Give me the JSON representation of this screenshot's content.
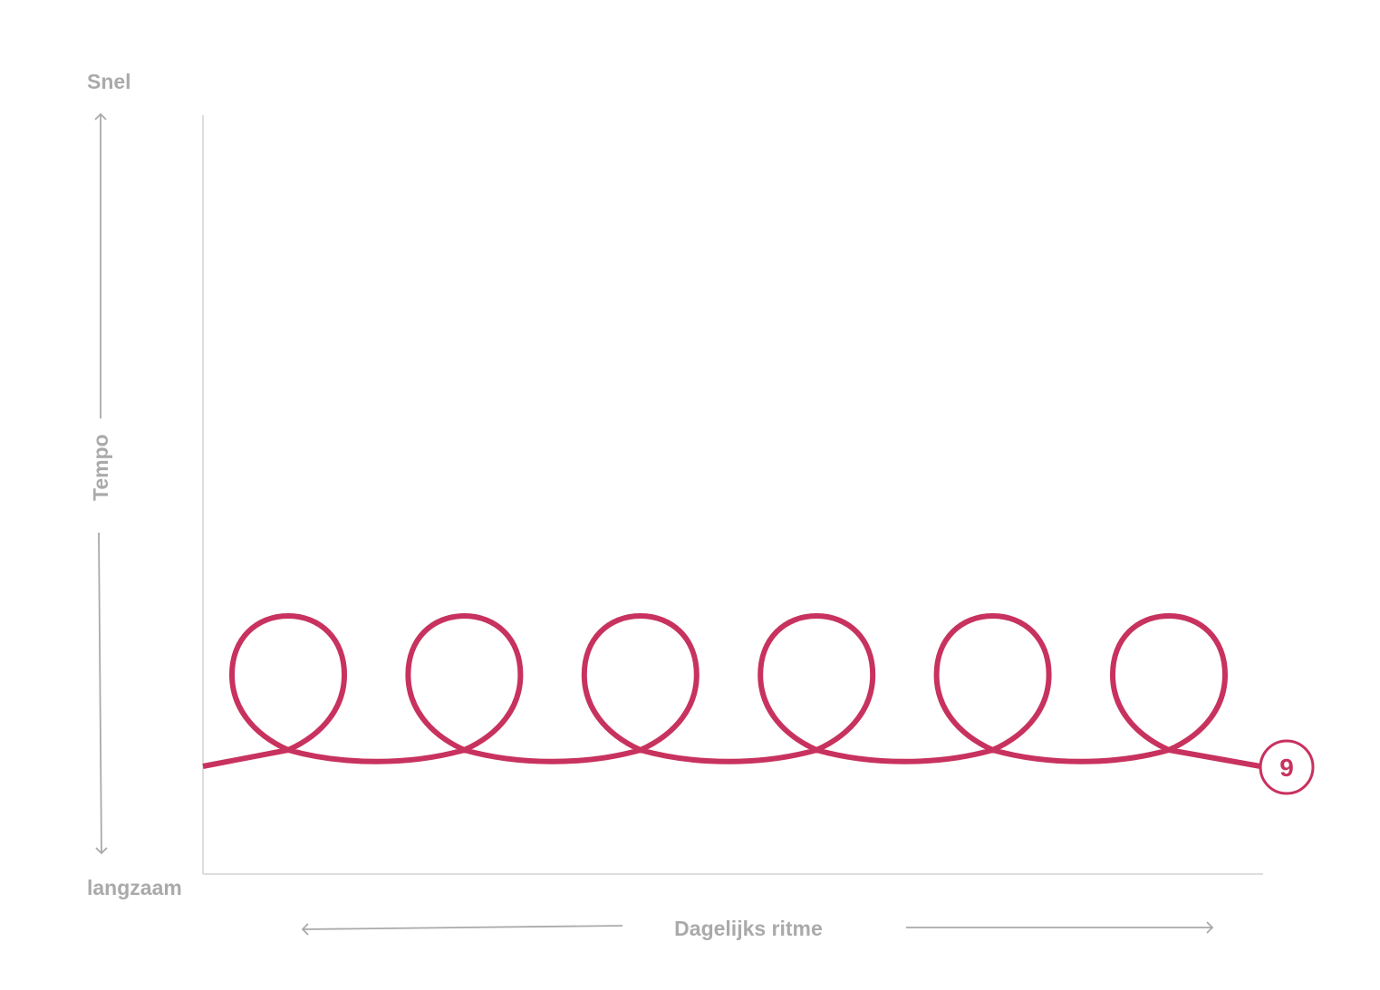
{
  "diagram": {
    "y_axis": {
      "label": "Tempo",
      "top_label": "Snel",
      "bottom_label": "langzaam"
    },
    "x_axis": {
      "label": "Dagelijks ritme"
    },
    "curve": {
      "loop_count": 6,
      "color": "#c8325e"
    },
    "end_marker": {
      "label": "9",
      "color": "#c8325e"
    },
    "axis_color": "#dddddd",
    "arrow_color": "#aaaaaa"
  }
}
